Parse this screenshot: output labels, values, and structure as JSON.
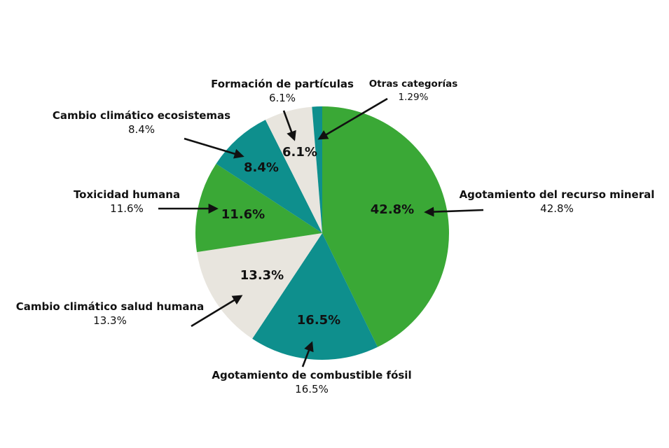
{
  "chart_data": {
    "type": "pie",
    "title": "",
    "slices": [
      {
        "label": "Agotamiento del recurso mineral",
        "value": 42.8,
        "value_text": "42.8%",
        "color": "#3aa836"
      },
      {
        "label": "Agotamiento de combustible fósil",
        "value": 16.5,
        "value_text": "16.5%",
        "color": "#0e8f8d"
      },
      {
        "label": "Cambio climático salud humana",
        "value": 13.3,
        "value_text": "13.3%",
        "color": "#e8e5de"
      },
      {
        "label": "Toxicidad humana",
        "value": 11.6,
        "value_text": "11.6%",
        "color": "#3aa836"
      },
      {
        "label": "Cambio climático ecosistemas",
        "value": 8.4,
        "value_text": "8.4%",
        "color": "#0e8f8d"
      },
      {
        "label": "Formación de partículas",
        "value": 6.1,
        "value_text": "6.1%",
        "color": "#e8e5de"
      },
      {
        "label": "Otras categorías",
        "value": 1.29,
        "value_text": "1.29%",
        "color": "#0e8f8d"
      }
    ],
    "start_angle_deg": 0,
    "direction": "clockwise",
    "legend": "none",
    "labels": "callout-arrows"
  }
}
